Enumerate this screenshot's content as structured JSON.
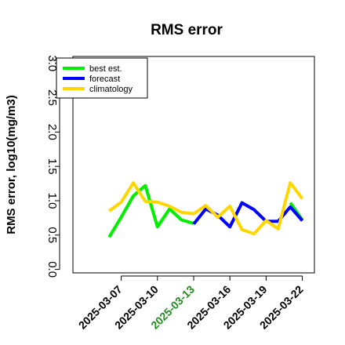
{
  "chart_data": {
    "type": "line",
    "title": "RMS error",
    "ylabel": "RMS error, log10(mg/m3)",
    "xlabel": "",
    "ylim": [
      -0.05,
      3.1
    ],
    "xlim": [
      "2025-03-03",
      "2025-03-23"
    ],
    "legend_position": "top-left",
    "yticks": [
      0.0,
      0.5,
      1.0,
      1.5,
      2.0,
      2.5,
      3.0
    ],
    "ytick_labels": [
      "0.0",
      "0.5",
      "1.0",
      "1.5",
      "2.0",
      "2.5",
      "3.0"
    ],
    "xticks": [
      "2025-03-07",
      "2025-03-10",
      "2025-03-13",
      "2025-03-16",
      "2025-03-19",
      "2025-03-22"
    ],
    "xtick_labels": [
      "2025-03-07",
      "2025-03-10",
      "2025-03-13",
      "2025-03-16",
      "2025-03-19",
      "2025-03-22"
    ],
    "xtick_colors": [
      "#000000",
      "#000000",
      "#228b22",
      "#000000",
      "#000000",
      "#000000"
    ],
    "grid": false,
    "x": [
      "2025-03-06",
      "2025-03-07",
      "2025-03-08",
      "2025-03-09",
      "2025-03-10",
      "2025-03-11",
      "2025-03-12",
      "2025-03-13",
      "2025-03-14",
      "2025-03-15",
      "2025-03-16",
      "2025-03-17",
      "2025-03-18",
      "2025-03-19",
      "2025-03-20",
      "2025-03-21",
      "2025-03-22"
    ],
    "series": [
      {
        "name": "best est.",
        "color": "#00ee00",
        "values": [
          0.47,
          0.76,
          1.07,
          1.22,
          0.62,
          0.88,
          0.72,
          0.67,
          null,
          null,
          null,
          null,
          null,
          null,
          null,
          0.97,
          0.72
        ]
      },
      {
        "name": "forecast",
        "color": "#0000ff",
        "values": [
          null,
          null,
          null,
          null,
          null,
          null,
          null,
          0.66,
          0.88,
          0.79,
          0.62,
          0.97,
          0.87,
          0.7,
          0.7,
          0.91,
          0.71
        ]
      },
      {
        "name": "climatology",
        "color": "#ffd700",
        "values": [
          0.85,
          0.98,
          1.26,
          0.99,
          0.98,
          0.92,
          0.83,
          0.81,
          0.93,
          0.76,
          0.92,
          0.58,
          0.52,
          0.71,
          0.59,
          1.26,
          1.03
        ]
      }
    ]
  }
}
